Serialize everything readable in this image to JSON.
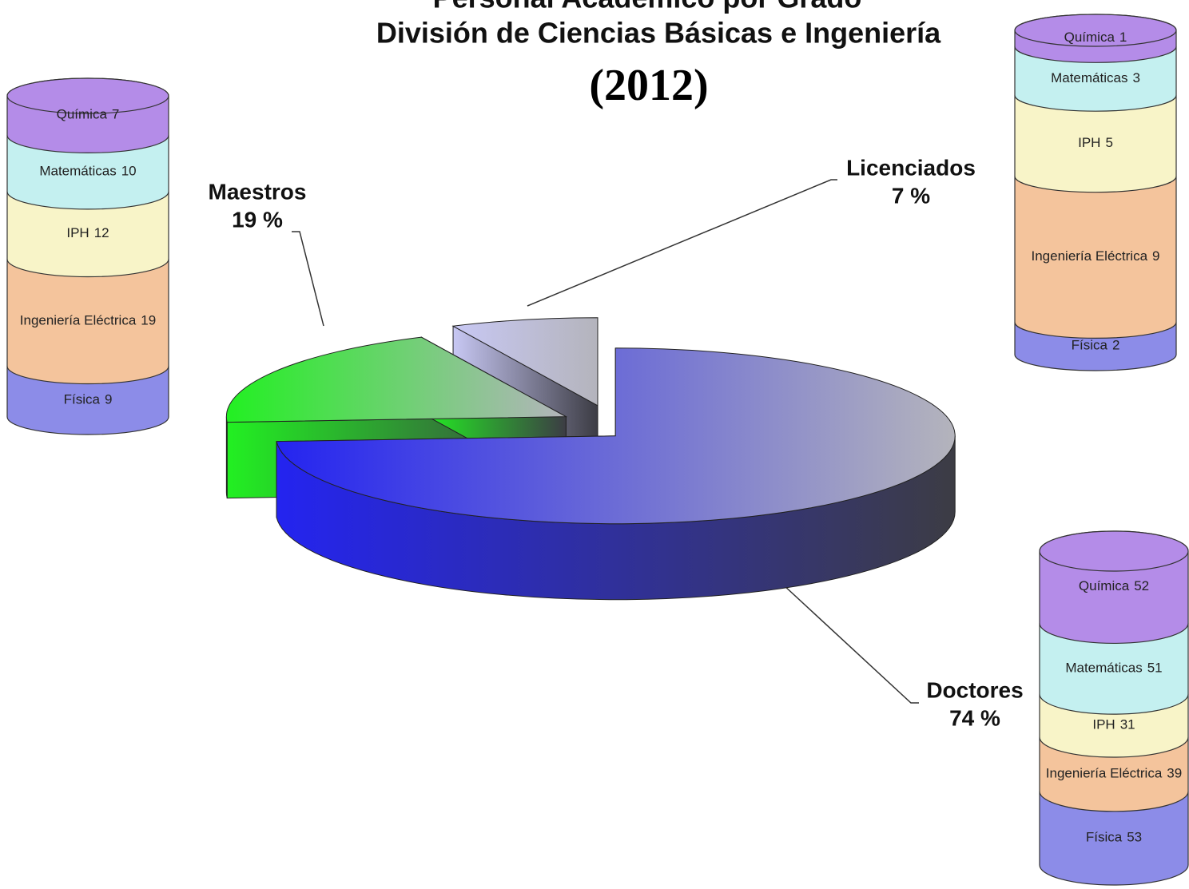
{
  "chart_data": [
    {
      "type": "pie",
      "title": "Personal Académico por Grado",
      "subtitle": "División de Ciencias Básicas e Ingeniería",
      "caption": "(2012)",
      "categories": [
        "Doctores",
        "Maestros",
        "Licenciados"
      ],
      "values": [
        74,
        19,
        7
      ],
      "value_labels": [
        "74 %",
        "19 %",
        "7 %"
      ],
      "colors": [
        "#2424f0",
        "#22f022",
        "#c8c8f4"
      ]
    },
    {
      "type": "stacked_cylinder",
      "categories": [
        "Química",
        "Matemáticas",
        "IPH",
        "Ingeniería Eléctrica",
        "Física"
      ],
      "values": [
        7,
        10,
        12,
        19,
        9
      ],
      "colors": [
        "#b48ce8",
        "#c4f0f0",
        "#f8f4c8",
        "#f4c49c",
        "#8c8ce8"
      ]
    },
    {
      "type": "stacked_cylinder",
      "categories": [
        "Química",
        "Matemáticas",
        "IPH",
        "Ingeniería Eléctrica",
        "Física"
      ],
      "values": [
        1,
        3,
        5,
        9,
        2
      ],
      "colors": [
        "#b48ce8",
        "#c4f0f0",
        "#f8f4c8",
        "#f4c49c",
        "#8c8ce8"
      ]
    },
    {
      "type": "stacked_cylinder",
      "categories": [
        "Química",
        "Matemáticas",
        "IPH",
        "Ingeniería Eléctrica",
        "Física"
      ],
      "values": [
        52,
        51,
        31,
        39,
        53
      ],
      "colors": [
        "#b48ce8",
        "#c4f0f0",
        "#f8f4c8",
        "#f4c49c",
        "#8c8ce8"
      ]
    }
  ]
}
